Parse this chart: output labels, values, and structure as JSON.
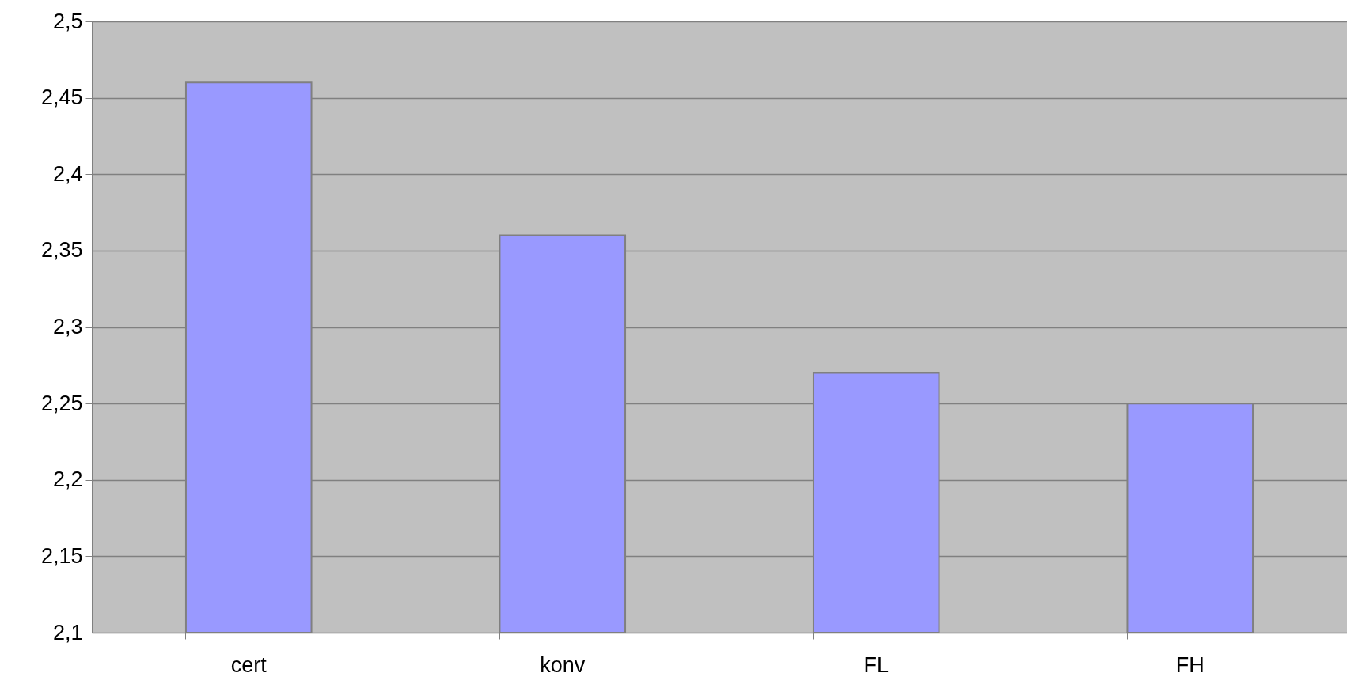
{
  "chart_data": {
    "type": "bar",
    "categories": [
      "cert",
      "konv",
      "FL",
      "FH"
    ],
    "values": [
      2.46,
      2.36,
      2.27,
      2.25
    ],
    "color": "#9999ff",
    "ylim": [
      2.1,
      2.5
    ],
    "yticks": [
      {
        "value": 2.1,
        "label": "2,1"
      },
      {
        "value": 2.15,
        "label": "2,15"
      },
      {
        "value": 2.2,
        "label": "2,2"
      },
      {
        "value": 2.25,
        "label": "2,25"
      },
      {
        "value": 2.3,
        "label": "2,3"
      },
      {
        "value": 2.35,
        "label": "2,35"
      },
      {
        "value": 2.4,
        "label": "2,4"
      },
      {
        "value": 2.45,
        "label": "2,45"
      },
      {
        "value": 2.5,
        "label": "2,5"
      }
    ],
    "grid": "y"
  }
}
